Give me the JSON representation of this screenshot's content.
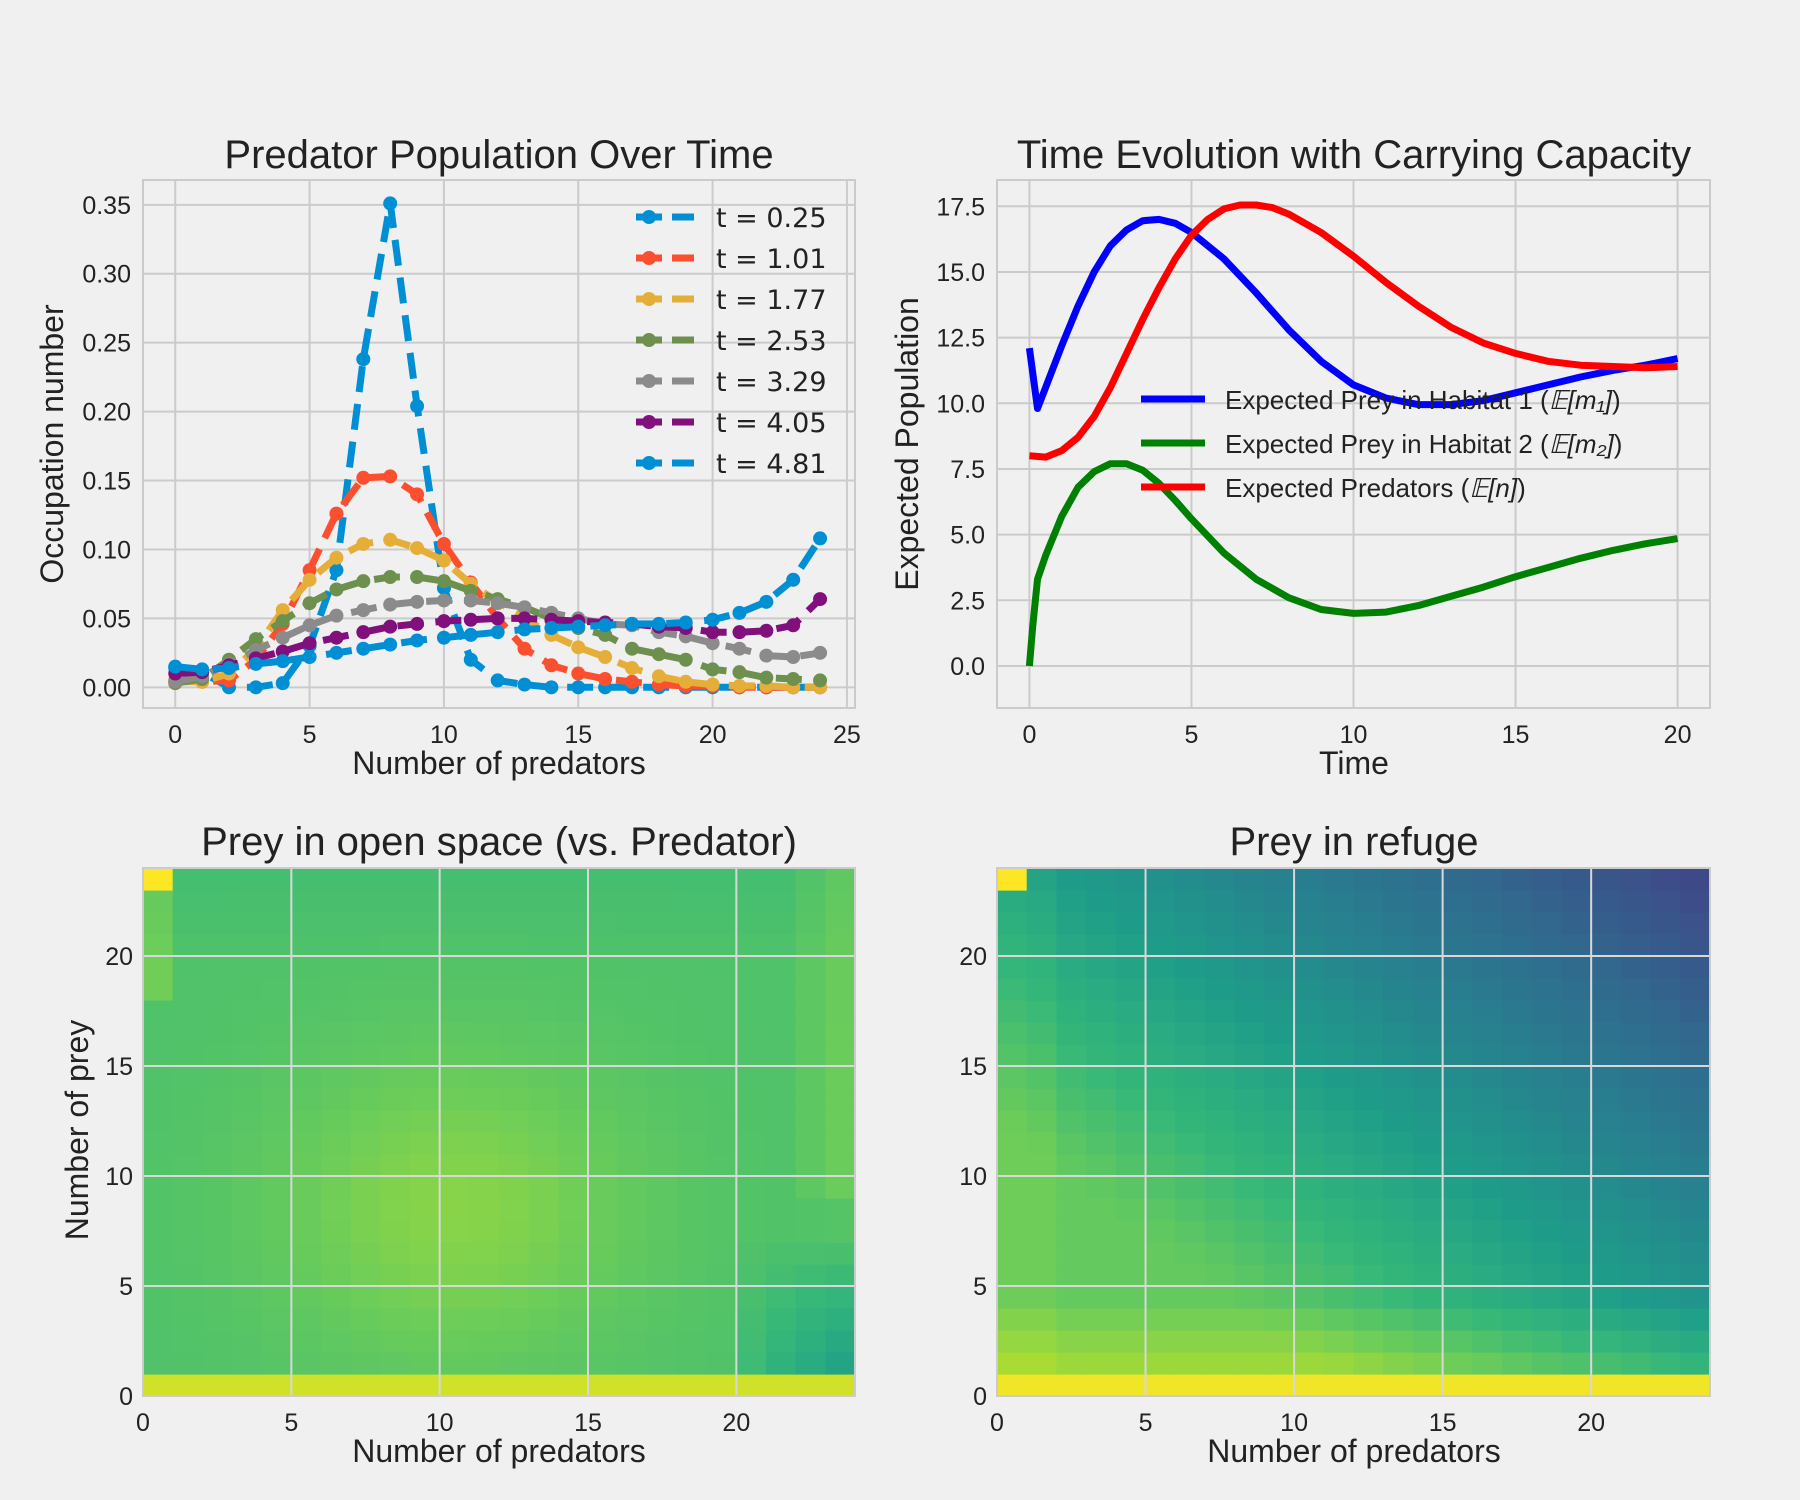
{
  "chart_data": [
    {
      "type": "line",
      "title": "Predator Population Over Time",
      "xlabel": "Number of predators",
      "ylabel": "Occupation number",
      "xlim": [
        -1.2,
        25.3
      ],
      "ylim": [
        -0.015,
        0.368
      ],
      "xticks": [
        0,
        5,
        10,
        15,
        20,
        25
      ],
      "yticks": [
        0.0,
        0.05,
        0.1,
        0.15,
        0.2,
        0.25,
        0.3,
        0.35
      ],
      "grid": true,
      "legend": "top-right",
      "x": [
        0,
        1,
        2,
        3,
        4,
        5,
        6,
        7,
        8,
        9,
        10,
        11,
        12,
        13,
        14,
        15,
        16,
        17,
        18,
        19,
        20,
        21,
        22,
        23,
        24
      ],
      "series": [
        {
          "name": "t = 0.25",
          "color": "#008fd5",
          "values": [
            0.014,
            0.011,
            0.0,
            0.0,
            0.003,
            0.03,
            0.085,
            0.238,
            0.351,
            0.204,
            0.072,
            0.02,
            0.005,
            0.002,
            0.0,
            0.0,
            0.0,
            0.0,
            0.0,
            0.0,
            0.0,
            0.0,
            0.0,
            0.0,
            0.0
          ]
        },
        {
          "name": "t = 1.01",
          "color": "#fc4f30",
          "values": [
            0.005,
            0.004,
            0.005,
            0.02,
            0.046,
            0.085,
            0.126,
            0.152,
            0.153,
            0.14,
            0.104,
            0.076,
            0.05,
            0.028,
            0.016,
            0.01,
            0.006,
            0.004,
            0.002,
            0.001,
            0.001,
            0.0,
            0.0,
            0.0,
            0.0
          ]
        },
        {
          "name": "t = 1.77",
          "color": "#e5ae38",
          "values": [
            0.004,
            0.004,
            0.01,
            0.028,
            0.056,
            0.078,
            0.094,
            0.104,
            0.107,
            0.101,
            0.092,
            0.075,
            0.062,
            0.05,
            0.038,
            0.029,
            0.022,
            0.014,
            0.008,
            0.004,
            0.002,
            0.001,
            0.001,
            0.0,
            0.0
          ]
        },
        {
          "name": "t = 2.53",
          "color": "#6d904f",
          "values": [
            0.003,
            0.006,
            0.02,
            0.035,
            0.048,
            0.061,
            0.071,
            0.077,
            0.08,
            0.08,
            0.077,
            0.07,
            0.064,
            0.058,
            0.05,
            0.043,
            0.038,
            0.028,
            0.024,
            0.02,
            0.013,
            0.011,
            0.007,
            0.006,
            0.005
          ]
        },
        {
          "name": "t = 3.29",
          "color": "#8b8b8b",
          "values": [
            0.004,
            0.008,
            0.017,
            0.027,
            0.036,
            0.045,
            0.052,
            0.056,
            0.06,
            0.062,
            0.063,
            0.063,
            0.061,
            0.058,
            0.054,
            0.05,
            0.046,
            0.045,
            0.04,
            0.037,
            0.032,
            0.028,
            0.023,
            0.022,
            0.025
          ]
        },
        {
          "name": "t = 4.05",
          "color": "#810f7c",
          "values": [
            0.01,
            0.011,
            0.016,
            0.021,
            0.026,
            0.032,
            0.036,
            0.04,
            0.044,
            0.046,
            0.048,
            0.049,
            0.05,
            0.05,
            0.049,
            0.048,
            0.047,
            0.046,
            0.044,
            0.043,
            0.04,
            0.04,
            0.041,
            0.045,
            0.064
          ]
        },
        {
          "name": "t = 4.81",
          "color": "#008fd5",
          "values": [
            0.015,
            0.013,
            0.014,
            0.017,
            0.019,
            0.022,
            0.025,
            0.028,
            0.031,
            0.034,
            0.036,
            0.038,
            0.04,
            0.042,
            0.043,
            0.044,
            0.045,
            0.046,
            0.046,
            0.047,
            0.049,
            0.054,
            0.062,
            0.078,
            0.108
          ]
        }
      ]
    },
    {
      "type": "line",
      "title": "Time Evolution with Carrying Capacity",
      "xlabel": "Time",
      "ylabel": "Expected Population",
      "xlim": [
        -1.0,
        21.0
      ],
      "ylim": [
        -1.6,
        18.5
      ],
      "xticks": [
        0,
        5,
        10,
        15,
        20
      ],
      "yticks": [
        0.0,
        2.5,
        5.0,
        7.5,
        10.0,
        12.5,
        15.0,
        17.5
      ],
      "grid": true,
      "legend": "center-right",
      "series": [
        {
          "name": "Expected Prey in Habitat 1 (",
          "math": "𝔼[m₁]",
          "color": "#0000ff",
          "x": [
            0,
            0.25,
            0.5,
            1,
            1.5,
            2,
            2.5,
            3,
            3.5,
            4,
            4.5,
            5,
            6,
            7,
            8,
            9,
            10,
            11,
            12,
            13,
            14,
            15,
            16,
            17,
            18,
            19,
            20
          ],
          "values": [
            12.1,
            9.8,
            10.6,
            12.2,
            13.7,
            15.0,
            16.0,
            16.6,
            16.95,
            17.0,
            16.85,
            16.5,
            15.5,
            14.2,
            12.8,
            11.6,
            10.7,
            10.2,
            9.95,
            9.95,
            10.1,
            10.4,
            10.7,
            11.0,
            11.25,
            11.45,
            11.7
          ]
        },
        {
          "name": "Expected Prey in Habitat 2 (",
          "math": "𝔼[m₂]",
          "color": "#008000",
          "x": [
            0,
            0.1,
            0.25,
            0.5,
            1,
            1.5,
            2,
            2.5,
            3,
            3.5,
            4,
            4.5,
            5,
            6,
            7,
            8,
            9,
            10,
            11,
            12,
            13,
            14,
            15,
            16,
            17,
            18,
            19,
            20
          ],
          "values": [
            0.0,
            1.5,
            3.3,
            4.2,
            5.7,
            6.8,
            7.4,
            7.7,
            7.7,
            7.45,
            6.95,
            6.3,
            5.6,
            4.3,
            3.3,
            2.6,
            2.15,
            2.0,
            2.05,
            2.3,
            2.65,
            3.0,
            3.4,
            3.75,
            4.1,
            4.4,
            4.65,
            4.85
          ]
        },
        {
          "name": "Expected Predators (",
          "math": "𝔼[n]",
          "color": "#ff0000",
          "x": [
            0,
            0.5,
            1,
            1.5,
            2,
            2.5,
            3,
            3.5,
            4,
            4.5,
            5,
            5.5,
            6,
            6.5,
            7,
            7.5,
            8,
            9,
            10,
            11,
            12,
            13,
            14,
            15,
            16,
            17,
            18,
            19,
            20
          ],
          "values": [
            8.0,
            7.95,
            8.2,
            8.7,
            9.5,
            10.6,
            11.9,
            13.2,
            14.4,
            15.5,
            16.4,
            17.0,
            17.4,
            17.55,
            17.55,
            17.45,
            17.2,
            16.5,
            15.6,
            14.6,
            13.7,
            12.9,
            12.3,
            11.9,
            11.6,
            11.45,
            11.4,
            11.35,
            11.4
          ]
        }
      ]
    },
    {
      "type": "heatmap",
      "title": "Prey in open space (vs. Predator)",
      "xlabel": "Number of predators",
      "ylabel": "Number of prey",
      "xlim": [
        0,
        24
      ],
      "ylim": [
        0,
        24
      ],
      "xticks": [
        0,
        5,
        10,
        15,
        20
      ],
      "yticks": [
        0,
        5,
        10,
        15,
        20
      ],
      "colormap": "viridis",
      "grid": true,
      "pattern": "mostly uniform mid-green; bright yellow cells along prey=0 and at predators=0/prey=23; slightly lighter band near predator 8-14; darker teal at high predators, low prey"
    },
    {
      "type": "heatmap",
      "title": "Prey in refuge",
      "xlabel": "Number of predators",
      "ylabel": "",
      "xlim": [
        0,
        24
      ],
      "ylim": [
        0,
        24
      ],
      "xticks": [
        0,
        5,
        10,
        15,
        20
      ],
      "yticks": [
        0,
        5,
        10,
        15,
        20
      ],
      "colormap": "viridis",
      "grid": true,
      "pattern": "yellow along prey=0 row; green for low predators; shading to teal, blue and dark purple towards high predators and high prey (darkest near predators 18-21, prey 23)"
    }
  ]
}
